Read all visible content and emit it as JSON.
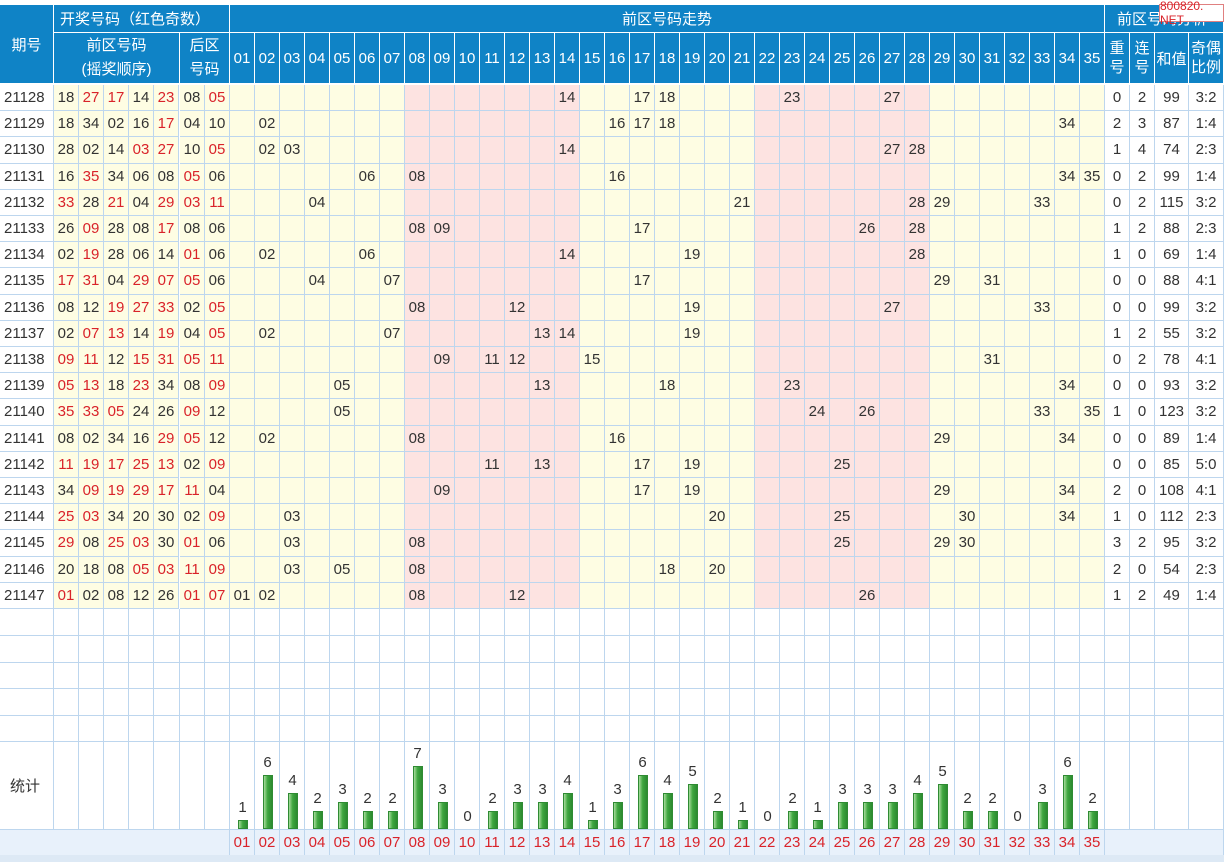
{
  "header": {
    "issue": "期号",
    "draw_group": "开奖号码（红色奇数）",
    "front_label_1": "前区号码",
    "front_label_2": "(摇奖顺序)",
    "back_label_1": "后区",
    "back_label_2": "号码",
    "trend_title": "前区号码走势",
    "analysis_title": "前区号码分析",
    "repeat_1": "重",
    "repeat_2": "号",
    "consec_1": "连",
    "consec_2": "号",
    "sum": "和值",
    "ratio_1": "奇偶",
    "ratio_2": "比例",
    "trend_numbers": [
      "01",
      "02",
      "03",
      "04",
      "05",
      "06",
      "07",
      "08",
      "09",
      "10",
      "11",
      "12",
      "13",
      "14",
      "15",
      "16",
      "17",
      "18",
      "19",
      "20",
      "21",
      "22",
      "23",
      "24",
      "25",
      "26",
      "27",
      "28",
      "29",
      "30",
      "31",
      "32",
      "33",
      "34",
      "35"
    ]
  },
  "watermark": "800820. NET",
  "rows": [
    {
      "issue": "21128",
      "front": [
        "18",
        "27",
        "17",
        "14",
        "23"
      ],
      "back": [
        "08",
        "05"
      ],
      "repeat": "0",
      "consec": "2",
      "sum": "99",
      "ratio": "3:2"
    },
    {
      "issue": "21129",
      "front": [
        "18",
        "34",
        "02",
        "16",
        "17"
      ],
      "back": [
        "04",
        "10"
      ],
      "repeat": "2",
      "consec": "3",
      "sum": "87",
      "ratio": "1:4"
    },
    {
      "issue": "21130",
      "front": [
        "28",
        "02",
        "14",
        "03",
        "27"
      ],
      "back": [
        "10",
        "05"
      ],
      "repeat": "1",
      "consec": "4",
      "sum": "74",
      "ratio": "2:3"
    },
    {
      "issue": "21131",
      "front": [
        "16",
        "35",
        "34",
        "06",
        "08"
      ],
      "back": [
        "05",
        "06"
      ],
      "repeat": "0",
      "consec": "2",
      "sum": "99",
      "ratio": "1:4"
    },
    {
      "issue": "21132",
      "front": [
        "33",
        "28",
        "21",
        "04",
        "29"
      ],
      "back": [
        "03",
        "11"
      ],
      "repeat": "0",
      "consec": "2",
      "sum": "115",
      "ratio": "3:2"
    },
    {
      "issue": "21133",
      "front": [
        "26",
        "09",
        "28",
        "08",
        "17"
      ],
      "back": [
        "08",
        "06"
      ],
      "repeat": "1",
      "consec": "2",
      "sum": "88",
      "ratio": "2:3"
    },
    {
      "issue": "21134",
      "front": [
        "02",
        "19",
        "28",
        "06",
        "14"
      ],
      "back": [
        "01",
        "06"
      ],
      "repeat": "1",
      "consec": "0",
      "sum": "69",
      "ratio": "1:4"
    },
    {
      "issue": "21135",
      "front": [
        "17",
        "31",
        "04",
        "29",
        "07"
      ],
      "back": [
        "05",
        "06"
      ],
      "repeat": "0",
      "consec": "0",
      "sum": "88",
      "ratio": "4:1"
    },
    {
      "issue": "21136",
      "front": [
        "08",
        "12",
        "19",
        "27",
        "33"
      ],
      "back": [
        "02",
        "05"
      ],
      "repeat": "0",
      "consec": "0",
      "sum": "99",
      "ratio": "3:2"
    },
    {
      "issue": "21137",
      "front": [
        "02",
        "07",
        "13",
        "14",
        "19"
      ],
      "back": [
        "04",
        "05"
      ],
      "repeat": "1",
      "consec": "2",
      "sum": "55",
      "ratio": "3:2"
    },
    {
      "issue": "21138",
      "front": [
        "09",
        "11",
        "12",
        "15",
        "31"
      ],
      "back": [
        "05",
        "11"
      ],
      "repeat": "0",
      "consec": "2",
      "sum": "78",
      "ratio": "4:1"
    },
    {
      "issue": "21139",
      "front": [
        "05",
        "13",
        "18",
        "23",
        "34"
      ],
      "back": [
        "08",
        "09"
      ],
      "repeat": "0",
      "consec": "0",
      "sum": "93",
      "ratio": "3:2"
    },
    {
      "issue": "21140",
      "front": [
        "35",
        "33",
        "05",
        "24",
        "26"
      ],
      "back": [
        "09",
        "12"
      ],
      "repeat": "1",
      "consec": "0",
      "sum": "123",
      "ratio": "3:2"
    },
    {
      "issue": "21141",
      "front": [
        "08",
        "02",
        "34",
        "16",
        "29"
      ],
      "back": [
        "05",
        "12"
      ],
      "repeat": "0",
      "consec": "0",
      "sum": "89",
      "ratio": "1:4"
    },
    {
      "issue": "21142",
      "front": [
        "11",
        "19",
        "17",
        "25",
        "13"
      ],
      "back": [
        "02",
        "09"
      ],
      "repeat": "0",
      "consec": "0",
      "sum": "85",
      "ratio": "5:0"
    },
    {
      "issue": "21143",
      "front": [
        "34",
        "09",
        "19",
        "29",
        "17"
      ],
      "back": [
        "11",
        "04"
      ],
      "repeat": "2",
      "consec": "0",
      "sum": "108",
      "ratio": "4:1"
    },
    {
      "issue": "21144",
      "front": [
        "25",
        "03",
        "34",
        "20",
        "30"
      ],
      "back": [
        "02",
        "09"
      ],
      "repeat": "1",
      "consec": "0",
      "sum": "112",
      "ratio": "2:3"
    },
    {
      "issue": "21145",
      "front": [
        "29",
        "08",
        "25",
        "03",
        "30"
      ],
      "back": [
        "01",
        "06"
      ],
      "repeat": "3",
      "consec": "2",
      "sum": "95",
      "ratio": "3:2"
    },
    {
      "issue": "21146",
      "front": [
        "20",
        "18",
        "08",
        "05",
        "03"
      ],
      "back": [
        "11",
        "09"
      ],
      "repeat": "2",
      "consec": "0",
      "sum": "54",
      "ratio": "2:3"
    },
    {
      "issue": "21147",
      "front": [
        "01",
        "02",
        "08",
        "12",
        "26"
      ],
      "back": [
        "01",
        "07"
      ],
      "repeat": "1",
      "consec": "2",
      "sum": "49",
      "ratio": "1:4"
    }
  ],
  "stats": {
    "label": "统计",
    "counts": [
      1,
      6,
      4,
      2,
      3,
      2,
      2,
      7,
      3,
      0,
      2,
      3,
      3,
      4,
      1,
      3,
      6,
      4,
      5,
      2,
      1,
      0,
      2,
      1,
      3,
      3,
      3,
      4,
      5,
      2,
      2,
      0,
      3,
      6,
      2
    ],
    "footer_numbers": [
      "01",
      "02",
      "03",
      "04",
      "05",
      "06",
      "07",
      "08",
      "09",
      "10",
      "11",
      "12",
      "13",
      "14",
      "15",
      "16",
      "17",
      "18",
      "19",
      "20",
      "21",
      "22",
      "23",
      "24",
      "25",
      "26",
      "27",
      "28",
      "29",
      "30",
      "31",
      "32",
      "33",
      "34",
      "35"
    ]
  },
  "colors": {
    "header_blue": "#0f83c6",
    "odd_red": "#d9232a",
    "zone_yellow": "#fefde3",
    "zone_pink": "#fde3e1",
    "bar_green": "#3fa740",
    "grid": "#bdd6ee"
  }
}
